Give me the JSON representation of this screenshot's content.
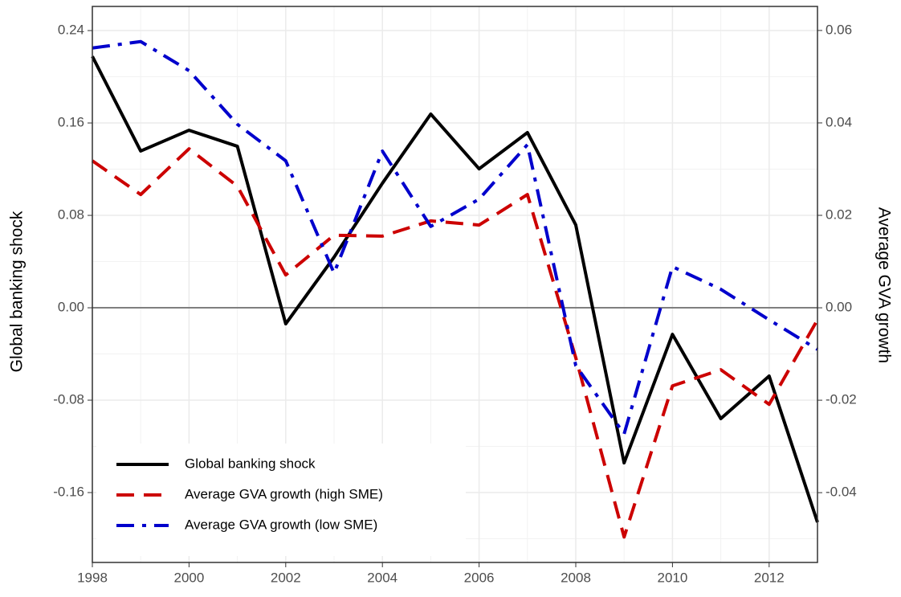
{
  "chart_data": {
    "type": "line",
    "y_label": "Global banking shock",
    "y2_label": "Average GVA growth",
    "x": [
      1998,
      1999,
      2000,
      2001,
      2002,
      2003,
      2004,
      2005,
      2006,
      2007,
      2008,
      2009,
      2010,
      2011,
      2012,
      2013
    ],
    "series": [
      {
        "name": "Global banking shock",
        "color": "#000000",
        "dash": "solid",
        "values": [
          0.2177,
          0.1357,
          0.1537,
          0.1398,
          -0.0139,
          0.0438,
          0.1078,
          0.1677,
          0.1203,
          0.1517,
          0.0717,
          -0.1343,
          -0.023,
          -0.096,
          -0.0591,
          -0.1857
        ]
      },
      {
        "name": "Average GVA growth (high SME)",
        "color": "#cc0000",
        "dash": "dashed",
        "axis": "y2",
        "values": [
          0.0318,
          0.0245,
          0.0344,
          0.0263,
          0.0071,
          0.0157,
          0.0155,
          0.0188,
          0.0179,
          0.0245,
          -0.0108,
          -0.0496,
          -0.0169,
          -0.0134,
          -0.0209,
          -0.0026
        ]
      },
      {
        "name": "Average GVA growth (low SME)",
        "color": "#0000cc",
        "dash": "dashdot",
        "axis": "y2",
        "values": [
          0.0562,
          0.0576,
          0.0513,
          0.0397,
          0.0318,
          0.0075,
          0.0339,
          0.0176,
          0.0235,
          0.0353,
          -0.0125,
          -0.0273,
          0.0089,
          0.004,
          -0.0026,
          -0.009
        ]
      }
    ],
    "xlim": [
      1998,
      2013
    ],
    "xticks": [
      1998,
      2000,
      2002,
      2004,
      2006,
      2008,
      2010,
      2012
    ],
    "ylim": [
      -0.2205,
      0.2609
    ],
    "yticks": [
      0.24,
      0.16,
      0.08,
      {
        "value": 0,
        "label": "0.00"
      },
      -0.08,
      -0.16
    ],
    "y2lim": [
      -0.0551,
      0.0652
    ],
    "y2ticks": [
      0.06,
      0.04,
      0.02,
      {
        "value": 0,
        "label": "0.00"
      },
      -0.02,
      -0.04
    ],
    "reference_line": 0,
    "grid": true,
    "legend": "bottom-left"
  }
}
